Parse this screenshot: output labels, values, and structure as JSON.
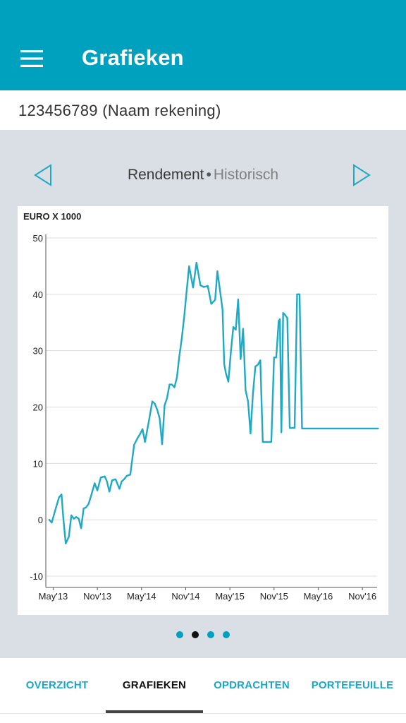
{
  "appbar": {
    "title": "Grafieken",
    "menu_icon": "menu-icon"
  },
  "account": {
    "name": "123456789 (Naam rekening)"
  },
  "chart_switch": {
    "active": "Rendement",
    "separator": "•",
    "inactive": "Historisch",
    "prev_icon": "chevron-left-icon",
    "next_icon": "chevron-right-icon"
  },
  "chart_data": {
    "type": "line",
    "ylabel": "EURO X 1000",
    "ylim": [
      -12,
      50
    ],
    "yticks": [
      -10,
      0,
      10,
      20,
      30,
      40,
      50
    ],
    "xticks": [
      "May'13",
      "Nov'13",
      "May'14",
      "Nov'14",
      "May'15",
      "Nov'15",
      "May'16",
      "Nov'16"
    ],
    "x_start": "2013-04",
    "x_end": "2017-01",
    "grid": true,
    "color": "#1fa9c4",
    "series": [
      {
        "x": [
          "2013-04-15",
          "2013-04-25",
          "2013-05-08",
          "2013-05-25",
          "2013-06-05",
          "2013-06-12",
          "2013-06-22",
          "2013-07-05",
          "2013-07-15",
          "2013-07-25",
          "2013-08-05",
          "2013-08-15",
          "2013-08-25",
          "2013-09-05",
          "2013-09-15",
          "2013-09-25",
          "2013-10-05",
          "2013-10-20",
          "2013-11-01",
          "2013-11-15",
          "2013-12-01",
          "2013-12-10",
          "2013-12-20",
          "2014-01-01",
          "2014-01-15",
          "2014-02-01",
          "2014-02-10",
          "2014-02-20",
          "2014-03-01",
          "2014-03-15",
          "2014-04-01",
          "2014-04-15",
          "2014-04-25",
          "2014-05-05",
          "2014-05-15",
          "2014-06-01",
          "2014-06-15",
          "2014-06-25",
          "2014-07-05",
          "2014-07-15",
          "2014-07-25",
          "2014-08-05",
          "2014-08-15",
          "2014-08-25",
          "2014-09-05",
          "2014-09-15",
          "2014-09-25",
          "2014-10-05",
          "2014-10-15",
          "2014-10-25",
          "2014-11-05",
          "2014-11-15",
          "2014-12-01",
          "2014-12-15",
          "2015-01-01",
          "2015-01-15",
          "2015-02-01",
          "2015-02-15",
          "2015-03-01",
          "2015-03-10",
          "2015-03-20",
          "2015-04-01",
          "2015-04-08",
          "2015-04-15",
          "2015-04-25",
          "2015-05-05",
          "2015-05-15",
          "2015-05-25",
          "2015-06-05",
          "2015-06-15",
          "2015-06-25",
          "2015-07-05",
          "2015-07-15",
          "2015-07-25",
          "2015-08-05",
          "2015-08-15",
          "2015-08-25",
          "2015-09-05",
          "2015-09-15",
          "2015-09-25",
          "2015-10-05",
          "2015-10-12",
          "2015-10-20",
          "2015-11-01",
          "2015-11-10",
          "2015-11-20",
          "2015-11-25",
          "2015-12-01",
          "2015-12-08",
          "2015-12-15",
          "2015-12-25",
          "2016-01-05",
          "2016-01-15",
          "2016-01-25",
          "2016-02-05",
          "2016-02-15",
          "2016-02-25",
          "2016-03-05",
          "2016-03-15",
          "2016-03-25",
          "2016-04-05",
          "2016-04-15",
          "2016-04-25",
          "2016-05-05",
          "2016-05-15",
          "2016-05-25",
          "2016-06-05",
          "2016-06-15",
          "2016-06-25",
          "2016-07-05",
          "2016-07-15",
          "2016-07-25",
          "2016-08-05",
          "2016-08-15",
          "2016-08-25",
          "2016-09-05",
          "2016-09-15",
          "2016-09-25",
          "2016-10-05",
          "2016-10-15",
          "2016-10-25",
          "2016-11-05",
          "2016-11-15",
          "2016-11-25",
          "2016-12-05",
          "2016-12-15",
          "2016-12-25",
          "2017-01-05"
        ],
        "y": [
          0,
          -0.5,
          1.5,
          4,
          4.5,
          0.5,
          -4.2,
          -3,
          0.8,
          0.2,
          0.5,
          0.2,
          -1.5,
          2,
          2.2,
          2.8,
          4.2,
          6.5,
          5.2,
          7.5,
          7.7,
          6.8,
          5,
          7,
          7.2,
          5.5,
          6.8,
          7.2,
          7.8,
          8,
          13.3,
          14.5,
          15.2,
          16.1,
          13.8,
          17.5,
          21,
          20.6,
          19.5,
          18,
          13.4,
          20.3,
          21.6,
          24,
          24,
          23.5,
          25.2,
          29,
          32.2,
          36.1,
          40.6,
          45,
          41.2,
          45.6,
          41.6,
          41.3,
          41.5,
          38.3,
          39,
          44.1,
          41,
          37.3,
          27.6,
          26,
          24.5,
          29.7,
          34.2,
          33.7,
          39.1,
          28.5,
          33.9,
          23,
          21,
          15.3,
          22.3,
          27.2,
          27.5,
          28.3,
          13.8,
          13.8,
          13.8,
          13.8,
          13.8,
          28.8,
          28.8,
          35.3,
          35.6,
          15.5,
          36.7,
          36.4,
          35.8,
          16.3,
          16.3,
          16.3,
          40,
          40,
          16.2,
          16.2,
          16.2,
          16.2,
          16.2,
          16.2,
          16.2,
          16.2,
          16.2,
          16.2,
          16.2,
          16.2,
          16.2,
          16.2,
          16.2,
          16.2,
          16.2,
          16.2,
          16.2,
          16.2,
          16.2,
          16.2,
          16.2,
          16.2,
          16.2,
          16.2,
          16.2,
          16.2,
          16.2,
          16.2,
          16.2,
          16.2
        ]
      }
    ]
  },
  "pager": {
    "count": 4,
    "active_index": 1
  },
  "tabs": [
    {
      "label": "OVERZICHT"
    },
    {
      "label": "GRAFIEKEN"
    },
    {
      "label": "OPDRACHTEN"
    },
    {
      "label": "PORTEFEUILLE"
    }
  ]
}
